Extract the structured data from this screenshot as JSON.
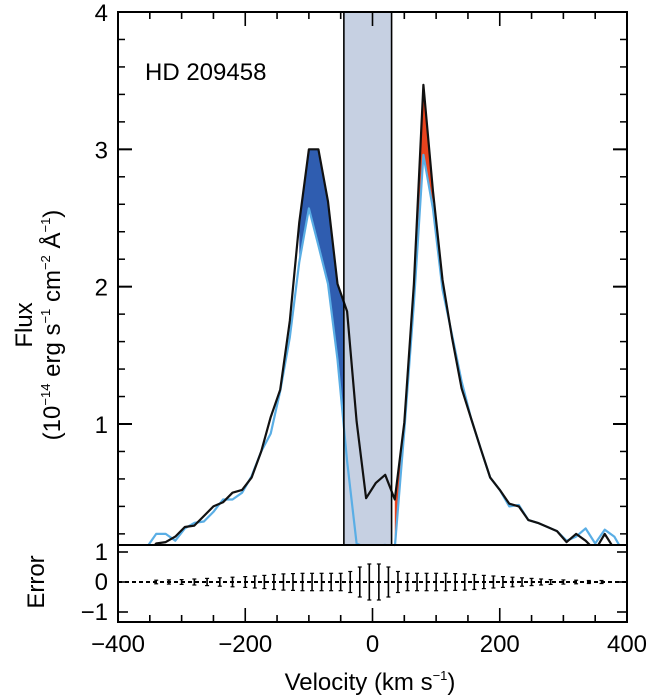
{
  "chart_data": {
    "type": "line",
    "annotation": "HD 209458",
    "xlabel": "Velocity (km s",
    "xlabel_sup": "−1",
    "xlabel_tail": ")",
    "ylabel_line1": "Flux",
    "ylabel_line2_pre": "(10",
    "ylabel_line2_sup1": "−14",
    "ylabel_line2_mid1": " erg s",
    "ylabel_line2_sup2": "−1",
    "ylabel_line2_mid2": " cm",
    "ylabel_line2_sup3": "−2",
    "ylabel_line2_mid3": " Å",
    "ylabel_line2_sup4": "−1",
    "ylabel_line2_tail": ")",
    "error_ylabel": "Error",
    "xlim": [
      -400,
      400
    ],
    "ylim": [
      0.0,
      4.0
    ],
    "error_ylim": [
      -1.2,
      1.2
    ],
    "x_ticks": [
      -400,
      -200,
      0,
      200,
      400
    ],
    "x_tick_labels": [
      "−400",
      "−200",
      "0",
      "200",
      "400"
    ],
    "y_ticks": [
      1,
      2,
      3,
      4
    ],
    "y_tick_labels": [
      "1",
      "2",
      "3",
      "4"
    ],
    "error_y_ticks": [
      1,
      0,
      -1
    ],
    "error_y_tick_labels": [
      "1",
      "0",
      "−1"
    ],
    "shaded_region": {
      "x": [
        -45,
        30
      ],
      "color": "#c6d0e2"
    },
    "colors": {
      "out_of_transit": "#111111",
      "in_transit": "#5aaee5",
      "blue_absorption": "#2f5db0",
      "red_absorption": "#e8431e"
    },
    "series": [
      {
        "key": "out_of_transit",
        "x": [
          -400,
          -385,
          -370,
          -355,
          -340,
          -325,
          -310,
          -295,
          -280,
          -265,
          -250,
          -235,
          -220,
          -205,
          -190,
          -175,
          -160,
          -145,
          -130,
          -115,
          -100,
          -85,
          -70,
          -55,
          -40,
          -25,
          -10,
          5,
          20,
          35,
          50,
          65,
          80,
          95,
          110,
          125,
          140,
          155,
          170,
          185,
          200,
          215,
          230,
          245,
          260,
          275,
          290,
          305,
          320,
          335,
          350,
          365,
          380,
          395
        ],
        "y": [
          0.05,
          0.06,
          0.06,
          0.05,
          0.13,
          0.14,
          0.18,
          0.25,
          0.26,
          0.33,
          0.4,
          0.43,
          0.5,
          0.52,
          0.61,
          0.8,
          1.05,
          1.25,
          1.75,
          2.47,
          3.0,
          3.0,
          2.62,
          2.02,
          1.82,
          1.02,
          0.46,
          0.57,
          0.63,
          0.45,
          1.01,
          2.02,
          3.47,
          2.7,
          2.05,
          1.63,
          1.26,
          1.04,
          0.82,
          0.61,
          0.52,
          0.42,
          0.4,
          0.3,
          0.28,
          0.25,
          0.22,
          0.14,
          0.2,
          0.15,
          0.08,
          0.2,
          0.09,
          0.04
        ]
      },
      {
        "key": "in_transit",
        "x": [
          -400,
          -385,
          -370,
          -355,
          -340,
          -325,
          -310,
          -295,
          -280,
          -265,
          -250,
          -235,
          -220,
          -205,
          -190,
          -175,
          -160,
          -145,
          -130,
          -115,
          -100,
          -85,
          -70,
          -55,
          -40,
          -25,
          -10,
          5,
          20,
          35,
          50,
          65,
          80,
          95,
          110,
          125,
          140,
          155,
          170,
          185,
          200,
          215,
          230,
          245,
          260,
          275,
          290,
          305,
          320,
          335,
          350,
          365,
          380,
          395
        ],
        "y": [
          0.07,
          0.04,
          0.05,
          0.1,
          0.2,
          0.2,
          0.15,
          0.24,
          0.28,
          0.29,
          0.36,
          0.45,
          0.45,
          0.5,
          0.62,
          0.8,
          0.93,
          1.24,
          1.63,
          2.18,
          2.57,
          2.3,
          2.02,
          1.47,
          0.73,
          0.13,
          0.1,
          0.11,
          0.12,
          0.1,
          0.95,
          1.88,
          2.96,
          2.57,
          1.98,
          1.65,
          1.31,
          1.04,
          0.82,
          0.61,
          0.52,
          0.4,
          0.41,
          0.3,
          0.28,
          0.25,
          0.22,
          0.15,
          0.18,
          0.24,
          0.13,
          0.23,
          0.18,
          0.06
        ]
      }
    ],
    "error_bars": {
      "x": [
        -340,
        -320,
        -300,
        -280,
        -260,
        -240,
        -220,
        -200,
        -185,
        -170,
        -155,
        -140,
        -125,
        -110,
        -95,
        -80,
        -65,
        -50,
        -35,
        -20,
        -5,
        10,
        25,
        40,
        55,
        70,
        85,
        100,
        115,
        130,
        145,
        160,
        175,
        190,
        205,
        220,
        235,
        250,
        265,
        280,
        300,
        320,
        340,
        360
      ],
      "err": [
        0.06,
        0.07,
        0.08,
        0.1,
        0.12,
        0.14,
        0.16,
        0.18,
        0.2,
        0.22,
        0.25,
        0.27,
        0.28,
        0.29,
        0.29,
        0.29,
        0.29,
        0.29,
        0.35,
        0.5,
        0.6,
        0.6,
        0.5,
        0.35,
        0.29,
        0.29,
        0.29,
        0.29,
        0.29,
        0.28,
        0.27,
        0.25,
        0.22,
        0.2,
        0.18,
        0.16,
        0.14,
        0.12,
        0.1,
        0.08,
        0.07,
        0.06,
        0.05,
        0.05
      ]
    }
  }
}
